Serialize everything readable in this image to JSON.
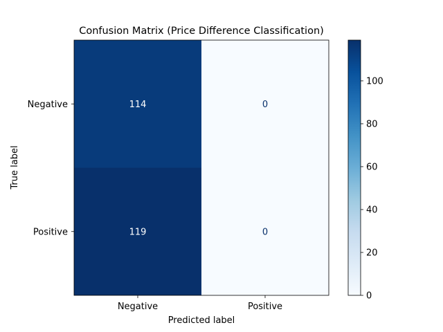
{
  "chart_data": {
    "type": "heatmap",
    "title": "Confusion Matrix (Price Difference Classification)",
    "xlabel": "Predicted label",
    "ylabel": "True label",
    "x_categories": [
      "Negative",
      "Positive"
    ],
    "y_categories": [
      "Negative",
      "Positive"
    ],
    "values": [
      [
        114,
        0
      ],
      [
        119,
        0
      ]
    ],
    "colormap": "Blues",
    "colorbar": {
      "range": [
        0,
        119
      ],
      "ticks": [
        0,
        20,
        40,
        60,
        80,
        100
      ]
    },
    "colors": {
      "high": "#08306b",
      "low": "#f7fbff",
      "text_on_dark": "#ffffff",
      "text_on_light": "#08306b"
    }
  }
}
